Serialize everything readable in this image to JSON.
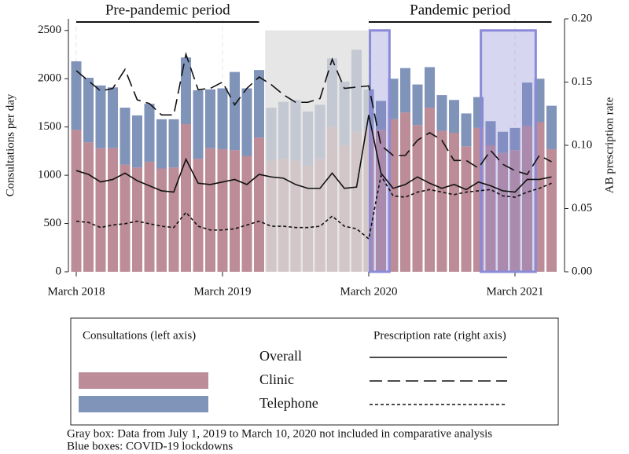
{
  "chart_data": {
    "type": "bar",
    "ylabel": "Consultations per day",
    "y2label": "AB prescription rate",
    "categories": [
      "March 2018",
      null,
      null,
      null,
      null,
      null,
      null,
      null,
      null,
      null,
      null,
      null,
      "March 2019",
      null,
      null,
      null,
      null,
      null,
      null,
      null,
      null,
      null,
      null,
      null,
      "March 2020",
      null,
      null,
      null,
      null,
      null,
      null,
      null,
      null,
      null,
      null,
      null,
      "March 2021",
      null,
      null,
      null
    ],
    "ylim": [
      0,
      2620
    ],
    "yticks": [
      0,
      500,
      1000,
      1500,
      2000,
      2500
    ],
    "y2lim": [
      0,
      0.2
    ],
    "y2ticks": [
      {
        "value": 0,
        "label": "0.00"
      },
      {
        "value": 0.05,
        "label": "0.05"
      },
      {
        "value": 0.1,
        "label": "0.10"
      },
      {
        "value": 0.15,
        "label": "0.15"
      },
      {
        "value": 0.2,
        "label": "0.20"
      }
    ],
    "series": [
      {
        "name": "Overall",
        "line_dash": "none",
        "axis": "y2",
        "rate": [
          0.08,
          0.077,
          0.071,
          0.073,
          0.078,
          0.072,
          0.068,
          0.064,
          0.063,
          0.089,
          0.07,
          0.069,
          0.071,
          0.073,
          0.069,
          0.077,
          0.075,
          0.074,
          0.069,
          0.066,
          0.066,
          0.078,
          0.066,
          0.067,
          0.124,
          0.078,
          0.066,
          0.069,
          0.075,
          0.07,
          0.066,
          0.069,
          0.065,
          0.071,
          0.068,
          0.064,
          0.063,
          0.073,
          0.073,
          0.075
        ]
      },
      {
        "name": "Clinic",
        "color": "#b07886",
        "line_dash": "16 7",
        "consultations": [
          1470,
          1340,
          1280,
          1280,
          1110,
          1080,
          1140,
          1070,
          1080,
          1530,
          1170,
          1280,
          1270,
          1260,
          1200,
          1390,
          1150,
          1170,
          1150,
          1100,
          1170,
          1500,
          1310,
          1450,
          1480,
          1470,
          1580,
          1650,
          1520,
          1700,
          1460,
          1440,
          1300,
          1490,
          1310,
          1230,
          1260,
          1510,
          1550,
          1270
        ],
        "rate": [
          0.159,
          0.151,
          0.143,
          0.145,
          0.16,
          0.136,
          0.133,
          0.124,
          0.124,
          0.172,
          0.144,
          0.145,
          0.15,
          0.132,
          0.145,
          0.154,
          0.148,
          0.14,
          0.134,
          0.134,
          0.137,
          0.168,
          0.145,
          0.146,
          0.147,
          0.1,
          0.092,
          0.092,
          0.104,
          0.11,
          0.104,
          0.088,
          0.088,
          0.082,
          0.096,
          0.085,
          0.08,
          0.077,
          0.092,
          0.087
        ]
      },
      {
        "name": "Telephone",
        "color": "#6a80ad",
        "line_dash": "4 3",
        "consultations": [
          710,
          670,
          650,
          630,
          590,
          540,
          600,
          510,
          500,
          690,
          710,
          610,
          630,
          810,
          700,
          700,
          550,
          590,
          630,
          560,
          560,
          710,
          660,
          850,
          410,
          300,
          420,
          460,
          420,
          420,
          370,
          340,
          340,
          320,
          250,
          220,
          230,
          450,
          450,
          450
        ],
        "rate": [
          0.04,
          0.039,
          0.035,
          0.037,
          0.038,
          0.04,
          0.038,
          0.036,
          0.035,
          0.047,
          0.036,
          0.033,
          0.033,
          0.034,
          0.037,
          0.04,
          0.036,
          0.036,
          0.035,
          0.035,
          0.036,
          0.044,
          0.036,
          0.034,
          0.026,
          0.076,
          0.06,
          0.059,
          0.063,
          0.065,
          0.063,
          0.061,
          0.063,
          0.064,
          0.065,
          0.06,
          0.059,
          0.063,
          0.066,
          0.07
        ]
      }
    ],
    "periods": [
      {
        "label": "Pre-pandemic period",
        "from": 0,
        "to": 15
      },
      {
        "label": "Pandemic period",
        "from": 24,
        "to": 39
      }
    ],
    "excluded_region": {
      "from": 15.5,
      "to": 24,
      "color": "#dcdcdc"
    },
    "lockdown_regions": [
      {
        "from": 24.1,
        "to": 25.7
      },
      {
        "from": 33.2,
        "to": 37.7
      }
    ],
    "lockdown_color": "#8a8ad8",
    "legend": {
      "bars_title": "Consultations (left axis)",
      "lines_title": "Prescription rate (right axis)"
    },
    "notes": [
      "Gray box: Data from July 1, 2019 to March 10, 2020 not included in comparative analysis",
      "Blue boxes: COVID-19 lockdowns"
    ]
  }
}
